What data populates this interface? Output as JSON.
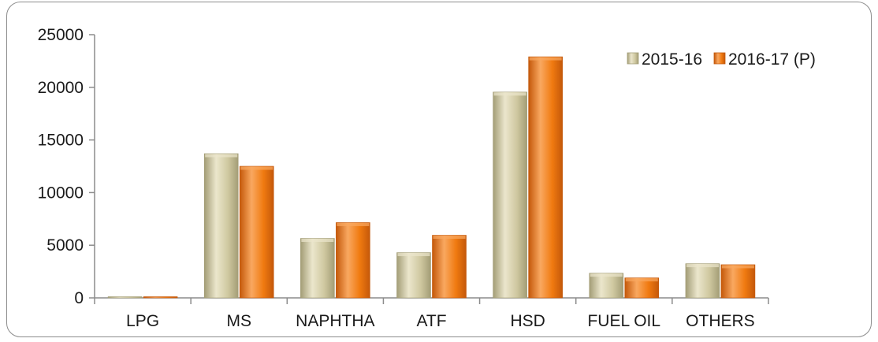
{
  "chart_data": {
    "type": "bar",
    "categories": [
      "LPG",
      "MS",
      "NAPHTHA",
      "ATF",
      "HSD",
      "FUEL OIL",
      "OTHERS"
    ],
    "series": [
      {
        "name": "2015-16",
        "values": [
          0,
          13700,
          5650,
          4300,
          19550,
          2350,
          3250
        ],
        "color": "#cfc8a0",
        "color_dark": "#a39d76",
        "color_light": "#ebe6cc"
      },
      {
        "name": "2016-17 (P)",
        "values": [
          100,
          12500,
          7150,
          5950,
          22900,
          1900,
          3150
        ],
        "color": "#f07a10",
        "color_dark": "#c4580a",
        "color_light": "#f9a860"
      }
    ],
    "y_ticks": [
      "0",
      "5000",
      "10000",
      "15000",
      "20000",
      "25000"
    ],
    "ylim": [
      0,
      25000
    ],
    "grid": false,
    "legend_position": "top-right",
    "title": "",
    "xlabel": "",
    "ylabel": ""
  }
}
